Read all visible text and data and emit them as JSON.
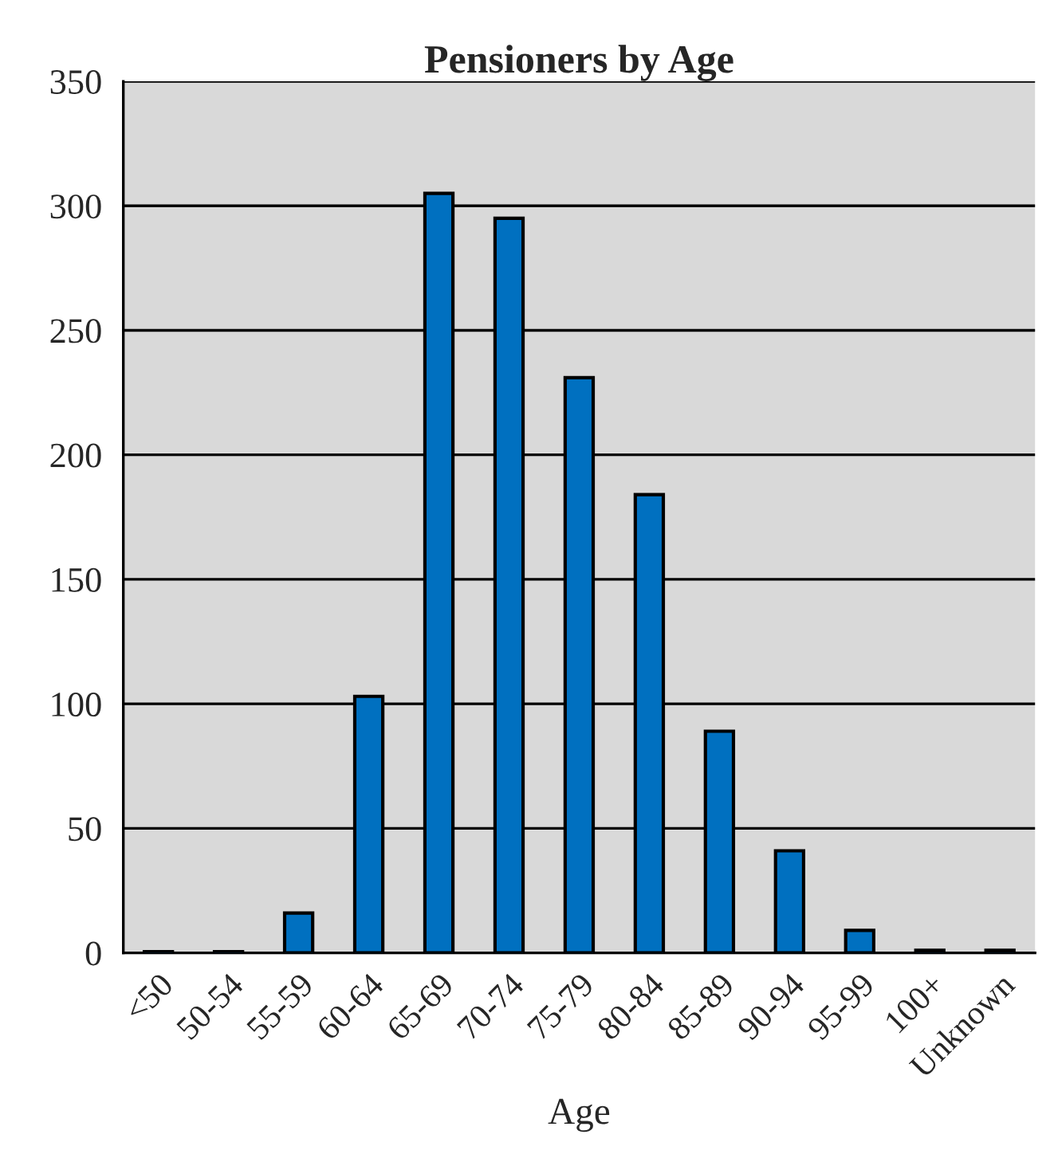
{
  "chart_data": {
    "type": "bar",
    "title": "Pensioners by Age",
    "xlabel": "Age",
    "categories": [
      "<50",
      "50-54",
      "55-59",
      "60-64",
      "65-69",
      "70-74",
      "75-79",
      "80-84",
      "85-89",
      "90-94",
      "95-99",
      "100+",
      "Unknown"
    ],
    "values": [
      0.5,
      0.5,
      16,
      103,
      305,
      295,
      231,
      184,
      89,
      41,
      9,
      1,
      1
    ],
    "color": "#0070c0",
    "ylim": [
      0,
      350
    ],
    "yticks": [
      0,
      50,
      100,
      150,
      200,
      250,
      300,
      350
    ],
    "grid": "y"
  }
}
